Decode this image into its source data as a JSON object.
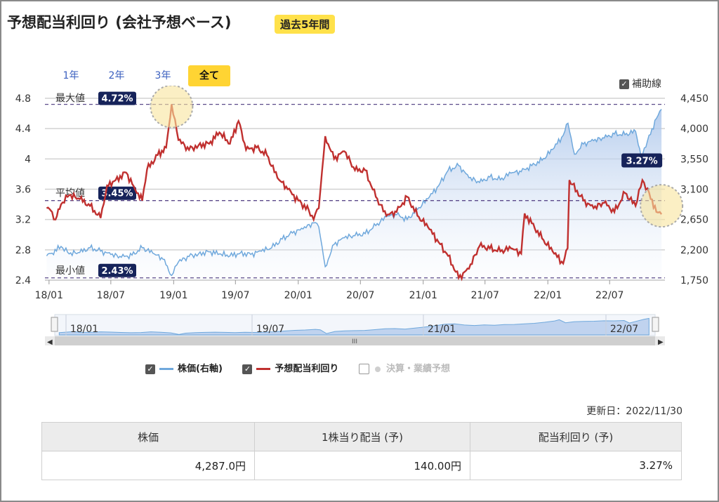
{
  "header": {
    "title": "予想配当利回り (会社予想ベース)",
    "badge": "過去5年間"
  },
  "period_tabs": [
    {
      "label": "1年",
      "active": false
    },
    {
      "label": "2年",
      "active": false
    },
    {
      "label": "3年",
      "active": false
    },
    {
      "label": "全て",
      "active": true
    }
  ],
  "aux_lines": {
    "label": "補助線",
    "checked": true
  },
  "chart_data": {
    "type": "line",
    "x_ticks": [
      "18/01",
      "18/07",
      "19/01",
      "19/07",
      "20/01",
      "20/07",
      "21/01",
      "21/07",
      "22/01",
      "22/07"
    ],
    "left_axis": {
      "ticks": [
        "4.8",
        "4.4",
        "4",
        "3.6",
        "3.2",
        "2.8",
        "2.4"
      ],
      "range": [
        2.4,
        4.8
      ]
    },
    "right_axis": {
      "ticks": [
        "4,450",
        "4,000",
        "3,550",
        "3,100",
        "2,650",
        "2,200",
        "1,750"
      ],
      "range": [
        1750,
        4450
      ]
    },
    "reference_lines": [
      {
        "label": "最大値",
        "value_label": "4.72%",
        "value": 4.72
      },
      {
        "label": "平均値",
        "value_label": "3.45%",
        "value": 3.45
      },
      {
        "label": "最小値",
        "value_label": "2.43%",
        "value": 2.43
      }
    ],
    "last_label": "3.27%",
    "series": [
      {
        "name": "株価(右軸)",
        "axis": "right",
        "color": "#6fa8dc",
        "points": [
          [
            "2017-12-25",
            2110
          ],
          [
            "2018-01-10",
            2150
          ],
          [
            "2018-02-05",
            2250
          ],
          [
            "2018-03-01",
            2140
          ],
          [
            "2018-04-01",
            2160
          ],
          [
            "2018-05-01",
            2230
          ],
          [
            "2018-06-01",
            2180
          ],
          [
            "2018-07-01",
            2130
          ],
          [
            "2018-08-01",
            2090
          ],
          [
            "2018-09-01",
            2120
          ],
          [
            "2018-10-01",
            2230
          ],
          [
            "2018-11-01",
            2150
          ],
          [
            "2018-12-01",
            2060
          ],
          [
            "2018-12-26",
            1820
          ],
          [
            "2019-01-15",
            2020
          ],
          [
            "2019-02-15",
            2100
          ],
          [
            "2019-03-15",
            2140
          ],
          [
            "2019-04-15",
            2170
          ],
          [
            "2019-05-15",
            2140
          ],
          [
            "2019-06-15",
            2110
          ],
          [
            "2019-07-15",
            2150
          ],
          [
            "2019-08-15",
            2130
          ],
          [
            "2019-09-15",
            2180
          ],
          [
            "2019-10-15",
            2230
          ],
          [
            "2019-11-15",
            2360
          ],
          [
            "2019-12-15",
            2450
          ],
          [
            "2020-01-15",
            2510
          ],
          [
            "2020-02-15",
            2600
          ],
          [
            "2020-03-01",
            2540
          ],
          [
            "2020-03-20",
            1950
          ],
          [
            "2020-04-15",
            2280
          ],
          [
            "2020-05-15",
            2380
          ],
          [
            "2020-06-15",
            2410
          ],
          [
            "2020-07-15",
            2440
          ],
          [
            "2020-08-15",
            2560
          ],
          [
            "2020-09-15",
            2690
          ],
          [
            "2020-10-15",
            2720
          ],
          [
            "2020-11-15",
            2650
          ],
          [
            "2020-12-15",
            2800
          ],
          [
            "2021-01-15",
            2960
          ],
          [
            "2021-02-15",
            3150
          ],
          [
            "2021-03-15",
            3380
          ],
          [
            "2021-04-15",
            3450
          ],
          [
            "2021-05-15",
            3270
          ],
          [
            "2021-06-15",
            3200
          ],
          [
            "2021-07-15",
            3280
          ],
          [
            "2021-08-15",
            3240
          ],
          [
            "2021-09-15",
            3340
          ],
          [
            "2021-10-15",
            3360
          ],
          [
            "2021-11-15",
            3450
          ],
          [
            "2021-12-15",
            3530
          ],
          [
            "2022-01-15",
            3690
          ],
          [
            "2022-02-15",
            3900
          ],
          [
            "2022-03-01",
            4080
          ],
          [
            "2022-03-20",
            3620
          ],
          [
            "2022-04-15",
            3770
          ],
          [
            "2022-05-15",
            3820
          ],
          [
            "2022-06-15",
            3860
          ],
          [
            "2022-07-15",
            3920
          ],
          [
            "2022-08-15",
            3910
          ],
          [
            "2022-09-15",
            3960
          ],
          [
            "2022-10-01",
            3580
          ],
          [
            "2022-10-20",
            3820
          ],
          [
            "2022-11-15",
            4150
          ],
          [
            "2022-11-30",
            4287
          ]
        ]
      },
      {
        "name": "予想配当利回り",
        "axis": "left",
        "color": "#c0302f",
        "points": [
          [
            "2017-12-25",
            3.35
          ],
          [
            "2018-01-10",
            3.3
          ],
          [
            "2018-01-20",
            3.2
          ],
          [
            "2018-02-05",
            3.4
          ],
          [
            "2018-03-01",
            3.52
          ],
          [
            "2018-04-01",
            3.47
          ],
          [
            "2018-05-01",
            3.38
          ],
          [
            "2018-06-01",
            3.22
          ],
          [
            "2018-06-20",
            3.65
          ],
          [
            "2018-07-15",
            3.72
          ],
          [
            "2018-08-15",
            3.82
          ],
          [
            "2018-09-15",
            3.55
          ],
          [
            "2018-10-01",
            3.45
          ],
          [
            "2018-10-15",
            3.86
          ],
          [
            "2018-11-15",
            4.05
          ],
          [
            "2018-12-10",
            4.15
          ],
          [
            "2018-12-26",
            4.72
          ],
          [
            "2019-01-15",
            4.25
          ],
          [
            "2019-02-15",
            4.12
          ],
          [
            "2019-03-15",
            4.18
          ],
          [
            "2019-04-15",
            4.2
          ],
          [
            "2019-05-15",
            4.35
          ],
          [
            "2019-06-15",
            4.2
          ],
          [
            "2019-07-10",
            4.5
          ],
          [
            "2019-08-01",
            4.12
          ],
          [
            "2019-09-01",
            4.15
          ],
          [
            "2019-10-01",
            4.05
          ],
          [
            "2019-11-01",
            3.75
          ],
          [
            "2019-12-01",
            3.6
          ],
          [
            "2020-01-01",
            3.45
          ],
          [
            "2020-02-01",
            3.32
          ],
          [
            "2020-02-15",
            3.2
          ],
          [
            "2020-03-01",
            3.35
          ],
          [
            "2020-03-20",
            4.3
          ],
          [
            "2020-04-15",
            4.0
          ],
          [
            "2020-05-15",
            4.1
          ],
          [
            "2020-06-15",
            3.85
          ],
          [
            "2020-07-15",
            3.85
          ],
          [
            "2020-08-15",
            3.5
          ],
          [
            "2020-09-15",
            3.25
          ],
          [
            "2020-10-15",
            3.3
          ],
          [
            "2020-11-15",
            3.5
          ],
          [
            "2020-12-15",
            3.25
          ],
          [
            "2021-01-15",
            3.1
          ],
          [
            "2021-02-15",
            2.9
          ],
          [
            "2021-03-15",
            2.72
          ],
          [
            "2021-04-15",
            2.43
          ],
          [
            "2021-05-15",
            2.55
          ],
          [
            "2021-06-15",
            2.85
          ],
          [
            "2021-07-15",
            2.82
          ],
          [
            "2021-08-15",
            2.78
          ],
          [
            "2021-09-15",
            2.82
          ],
          [
            "2021-10-15",
            2.75
          ],
          [
            "2021-10-25",
            3.28
          ],
          [
            "2021-11-15",
            3.15
          ],
          [
            "2021-12-15",
            2.95
          ],
          [
            "2022-01-15",
            2.78
          ],
          [
            "2022-02-15",
            2.62
          ],
          [
            "2022-02-28",
            2.82
          ],
          [
            "2022-03-05",
            3.72
          ],
          [
            "2022-04-15",
            3.45
          ],
          [
            "2022-05-15",
            3.35
          ],
          [
            "2022-06-15",
            3.42
          ],
          [
            "2022-07-15",
            3.3
          ],
          [
            "2022-08-15",
            3.55
          ],
          [
            "2022-09-15",
            3.38
          ],
          [
            "2022-10-05",
            3.72
          ],
          [
            "2022-10-25",
            3.55
          ],
          [
            "2022-11-15",
            3.3
          ],
          [
            "2022-11-30",
            3.27
          ]
        ]
      }
    ]
  },
  "navigator": {
    "labels": [
      "18/01",
      "19/07",
      "21/01",
      "22/07"
    ]
  },
  "legend": [
    {
      "label": "株価(右軸)",
      "color": "#6fa8dc",
      "checked": true
    },
    {
      "label": "予想配当利回り",
      "color": "#c0302f",
      "checked": true
    },
    {
      "label": "決算・業績予想",
      "color": "#cfcfcf",
      "checked": false
    }
  ],
  "updated": "更新日：2022/11/30",
  "summary_table": {
    "headers": [
      "株価",
      "1株当り配当 (予)",
      "配当利回り (予)"
    ],
    "values": [
      "4,287.0円",
      "140.00円",
      "3.27%"
    ]
  }
}
